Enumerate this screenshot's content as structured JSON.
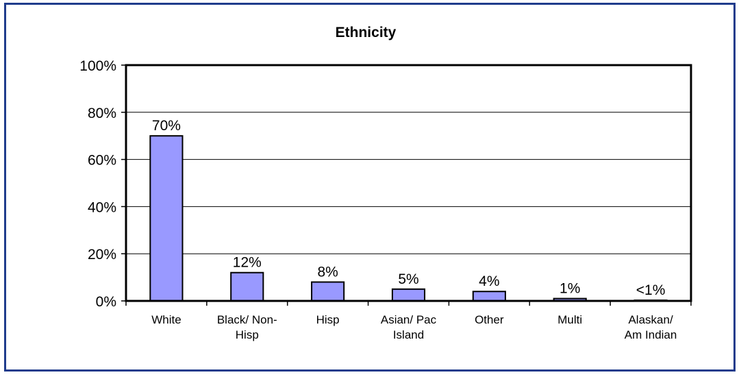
{
  "chart_data": {
    "type": "bar",
    "title": "Ethnicity",
    "xlabel": "",
    "ylabel": "",
    "categories": [
      [
        "White"
      ],
      [
        "Black/ Non-",
        "Hisp"
      ],
      [
        "Hisp"
      ],
      [
        "Asian/ Pac",
        "Island"
      ],
      [
        "Other"
      ],
      [
        "Multi"
      ],
      [
        "Alaskan/",
        "Am Indian"
      ]
    ],
    "values": [
      70,
      12,
      8,
      5,
      4,
      1,
      0.3
    ],
    "data_labels": [
      "70%",
      "12%",
      "8%",
      "5%",
      "4%",
      "1%",
      "<1%"
    ],
    "y_ticks": [
      0,
      20,
      40,
      60,
      80,
      100
    ],
    "y_tick_labels": [
      "0%",
      "20%",
      "40%",
      "60%",
      "80%",
      "100%"
    ],
    "ylim": [
      0,
      100
    ],
    "grid": true,
    "legend": "none",
    "colors": {
      "bar_fill": "#9999ff",
      "bar_stroke": "#000000",
      "frame": "#1f3c8c",
      "grid": "#000000"
    }
  }
}
